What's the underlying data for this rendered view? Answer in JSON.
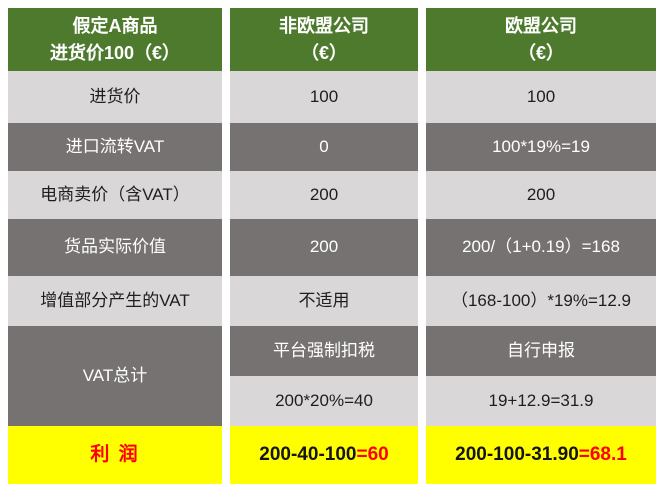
{
  "colors": {
    "header_green": "#4e7a2e",
    "row_light_gray": "#d9d7d7",
    "row_dark_gray": "#777272",
    "profit_yellow": "#ffff00",
    "profit_red": "#ff0000"
  },
  "table": {
    "headers": {
      "col1_line1": "假定A商品",
      "col1_line2": "进货价100（€）",
      "col2_line1": "非欧盟公司",
      "col2_line2": "（€）",
      "col3_line1": "欧盟公司",
      "col3_line2": "（€）"
    },
    "rows": [
      {
        "label": "进货价",
        "non_eu": "100",
        "eu": "100"
      },
      {
        "label": "进口流转VAT",
        "non_eu": "0",
        "eu": "100*19%=19"
      },
      {
        "label": "电商卖价（含VAT）",
        "non_eu": "200",
        "eu": "200"
      },
      {
        "label": "货品实际价值",
        "non_eu": "200",
        "eu": "200/（1+0.19）=168"
      },
      {
        "label": "增值部分产生的VAT",
        "non_eu": "不适用",
        "eu": "（168-100）*19%=12.9"
      }
    ],
    "vat_total": {
      "label": "VAT总计",
      "non_eu_method": "平台强制扣税",
      "non_eu_calc": "200*20%=40",
      "eu_method": "自行申报",
      "eu_calc": "19+12.9=31.9"
    },
    "profit": {
      "label": "利 润",
      "non_eu_expr": "200-40-100",
      "non_eu_result": "=60",
      "eu_expr": "200-100-31.90",
      "eu_result": "=68.1"
    }
  },
  "chart_data": {
    "type": "table",
    "title": "非欧盟公司与欧盟公司VAT对比（假定A商品进货价100€）",
    "columns": [
      "假定A商品 进货价100（€）",
      "非欧盟公司（€）",
      "欧盟公司（€）"
    ],
    "rows": [
      [
        "进货价",
        "100",
        "100"
      ],
      [
        "进口流转VAT",
        "0",
        "100*19%=19"
      ],
      [
        "电商卖价（含VAT）",
        "200",
        "200"
      ],
      [
        "货品实际价值",
        "200",
        "200/（1+0.19）=168"
      ],
      [
        "增值部分产生的VAT",
        "不适用",
        "（168-100）*19%=12.9"
      ],
      [
        "VAT总计",
        "平台强制扣税",
        "自行申报"
      ],
      [
        "VAT总计",
        "200*20%=40",
        "19+12.9=31.9"
      ],
      [
        "利 润",
        "200-40-100=60",
        "200-100-31.90=68.1"
      ]
    ],
    "numeric_summary": {
      "purchase_price": 100,
      "sale_price_incl_vat": 200,
      "non_eu_import_vat": 0,
      "eu_import_vat": 19,
      "non_eu_goods_value": 200,
      "eu_goods_value": 168,
      "eu_value_added_vat": 12.9,
      "non_eu_total_vat": 40,
      "eu_total_vat": 31.9,
      "non_eu_profit": 60,
      "eu_profit": 68.1
    }
  }
}
